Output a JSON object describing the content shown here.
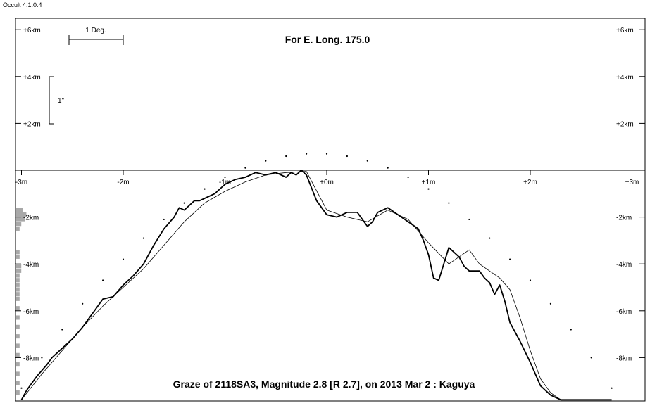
{
  "app": {
    "version": "Occult 4.1.0.4"
  },
  "chart_data": {
    "type": "line",
    "top_label": "For E. Long. 175.0",
    "bottom_label": "Graze of  2118SA3,  Magnitude 2.8 [R 2.7],  on 2013 Mar  2  :  Kaguya",
    "scale_bar_deg_label": "1 Deg.",
    "scale_bar_arcsec_label": "1\"",
    "x_ticks": [
      {
        "value": -3,
        "label": "-3m"
      },
      {
        "value": -2,
        "label": "-2m"
      },
      {
        "value": -1,
        "label": "-1m"
      },
      {
        "value": 0,
        "label": "+0m"
      },
      {
        "value": 1,
        "label": "+1m"
      },
      {
        "value": 2,
        "label": "+2m"
      },
      {
        "value": 3,
        "label": "+3m"
      }
    ],
    "y_ticks_top": [
      {
        "value": 6,
        "label": "+6km"
      },
      {
        "value": 4,
        "label": "+4km"
      },
      {
        "value": 2,
        "label": "+2km"
      }
    ],
    "y_ticks_bottom": [
      {
        "value": -2,
        "label": "-2km"
      },
      {
        "value": -4,
        "label": "-4km"
      },
      {
        "value": -6,
        "label": "-6km"
      },
      {
        "value": -8,
        "label": "-8km"
      }
    ],
    "xlim": [
      -3.2,
      3.25
    ],
    "ylim": [
      -9.8,
      6.6
    ],
    "series": [
      {
        "style": "detailed",
        "x": [
          -3.0,
          -2.95,
          -2.9,
          -2.85,
          -2.8,
          -2.75,
          -2.7,
          -2.6,
          -2.5,
          -2.4,
          -2.3,
          -2.2,
          -2.1,
          -2.0,
          -1.9,
          -1.8,
          -1.7,
          -1.6,
          -1.5,
          -1.45,
          -1.4,
          -1.3,
          -1.25,
          -1.2,
          -1.1,
          -1.0,
          -0.9,
          -0.8,
          -0.7,
          -0.6,
          -0.5,
          -0.4,
          -0.35,
          -0.3,
          -0.25,
          -0.2,
          -0.1,
          -0.05,
          0.0,
          0.1,
          0.2,
          0.3,
          0.4,
          0.45,
          0.5,
          0.6,
          0.7,
          0.8,
          0.9,
          0.95,
          1.0,
          1.05,
          1.1,
          1.15,
          1.2,
          1.3,
          1.35,
          1.4,
          1.5,
          1.55,
          1.6,
          1.65,
          1.7,
          1.75,
          1.8,
          1.9,
          2.0,
          2.1,
          2.2,
          2.25,
          2.3,
          2.35,
          2.4,
          2.5,
          2.6,
          2.7,
          2.8
        ],
        "y": [
          -9.8,
          -9.4,
          -9.1,
          -8.8,
          -8.55,
          -8.3,
          -8.0,
          -7.6,
          -7.2,
          -6.7,
          -6.1,
          -5.5,
          -5.4,
          -4.9,
          -4.5,
          -4.0,
          -3.2,
          -2.5,
          -2.0,
          -1.6,
          -1.7,
          -1.3,
          -1.3,
          -1.2,
          -1.0,
          -0.6,
          -0.4,
          -0.3,
          -0.1,
          -0.2,
          -0.1,
          -0.3,
          -0.1,
          -0.2,
          0.0,
          -0.2,
          -1.3,
          -1.6,
          -1.9,
          -2.0,
          -1.8,
          -1.8,
          -2.4,
          -2.2,
          -1.8,
          -1.6,
          -1.9,
          -2.2,
          -2.5,
          -3.0,
          -3.6,
          -4.6,
          -4.7,
          -4.0,
          -3.3,
          -3.7,
          -4.1,
          -4.3,
          -4.3,
          -4.6,
          -4.8,
          -5.3,
          -4.9,
          -5.6,
          -6.5,
          -7.3,
          -8.2,
          -9.2,
          -9.6,
          -9.7,
          -9.8,
          -9.8,
          -9.8,
          -9.8,
          -9.8,
          -9.8,
          -9.8
        ]
      },
      {
        "style": "smooth",
        "x": [
          -3.0,
          -2.8,
          -2.6,
          -2.4,
          -2.2,
          -2.0,
          -1.8,
          -1.6,
          -1.4,
          -1.2,
          -1.0,
          -0.8,
          -0.6,
          -0.4,
          -0.2,
          0.0,
          0.2,
          0.4,
          0.6,
          0.8,
          1.0,
          1.2,
          1.4,
          1.5,
          1.6,
          1.7,
          1.8,
          1.9,
          2.0,
          2.1,
          2.2,
          2.3,
          2.4
        ],
        "y": [
          -9.8,
          -8.7,
          -7.7,
          -6.7,
          -5.8,
          -5.0,
          -4.2,
          -3.2,
          -2.2,
          -1.4,
          -0.9,
          -0.5,
          -0.2,
          -0.1,
          -0.05,
          -1.7,
          -2.0,
          -2.2,
          -1.7,
          -2.1,
          -3.1,
          -4.0,
          -3.4,
          -4.0,
          -4.3,
          -4.6,
          -5.1,
          -6.3,
          -7.7,
          -8.9,
          -9.5,
          -9.8,
          -9.8
        ]
      },
      {
        "style": "dotted",
        "x": [
          -3.0,
          -2.8,
          -2.6,
          -2.4,
          -2.2,
          -2.0,
          -1.8,
          -1.6,
          -1.4,
          -1.2,
          -1.0,
          -0.8,
          -0.6,
          -0.4,
          -0.2,
          0.0,
          0.2,
          0.4,
          0.6,
          0.8,
          1.0,
          1.2,
          1.4,
          1.6,
          1.8,
          2.0,
          2.2,
          2.4,
          2.6,
          2.8
        ],
        "y": [
          -9.3,
          -8.0,
          -6.8,
          -5.7,
          -4.7,
          -3.8,
          -2.9,
          -2.1,
          -1.4,
          -0.8,
          -0.3,
          0.1,
          0.4,
          0.6,
          0.7,
          0.7,
          0.6,
          0.4,
          0.1,
          -0.3,
          -0.8,
          -1.4,
          -2.1,
          -2.9,
          -3.8,
          -4.7,
          -5.7,
          -6.8,
          -8.0,
          -9.3
        ]
      }
    ],
    "histogram": {
      "y": [
        -1.7,
        -1.9,
        -2.1,
        -2.3,
        -2.5,
        -3.5,
        -3.7,
        -4.1,
        -4.3,
        -4.5,
        -4.7,
        -4.9,
        -5.1,
        -5.3,
        -5.5,
        -5.9,
        -6.3,
        -6.7,
        -7.1,
        -7.5,
        -7.9,
        -8.3,
        -8.7,
        -9.1,
        -9.5
      ],
      "values": [
        4,
        6,
        5,
        3,
        2,
        2,
        2,
        3,
        3,
        2,
        2,
        2,
        2,
        2,
        2,
        2,
        2,
        2,
        2,
        2,
        2,
        2,
        2,
        2,
        2
      ]
    }
  }
}
